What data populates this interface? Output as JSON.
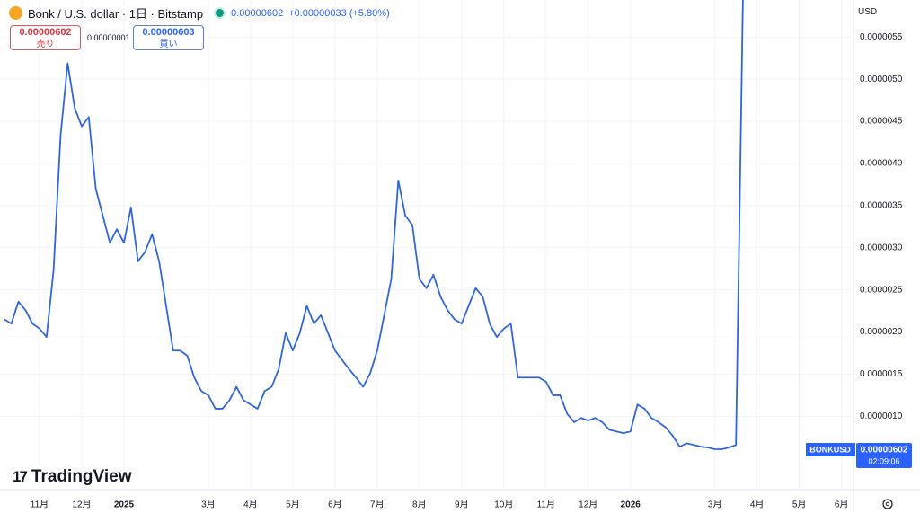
{
  "header": {
    "symbol": "Bonk / U.S. dollar · 1日 · Bitstamp",
    "last_price": "0.00000602",
    "change": "+0.00000033 (+5.80%)"
  },
  "order_panel": {
    "sell_price": "0.00000602",
    "sell_label": "売り",
    "spread": "0.00000001",
    "buy_price": "0.00000603",
    "buy_label": "買い"
  },
  "currency": "USD",
  "price_tag": {
    "symbol": "BONKUSD",
    "price": "0.00000602",
    "countdown": "02:09:06"
  },
  "logo": "TradingView",
  "chart_data": {
    "type": "line",
    "color": "#3166d9",
    "categories": [
      null,
      null,
      null,
      null,
      null,
      "11月",
      null,
      null,
      null,
      null,
      null,
      "12月",
      null,
      null,
      null,
      null,
      null,
      "2025",
      null,
      null,
      null,
      null,
      null,
      null,
      null,
      null,
      null,
      null,
      null,
      "3月",
      null,
      null,
      null,
      null,
      null,
      "4月",
      null,
      null,
      null,
      null,
      null,
      "5月",
      null,
      null,
      null,
      null,
      null,
      "6月",
      null,
      null,
      null,
      null,
      null,
      "7月",
      null,
      null,
      null,
      null,
      null,
      "8月",
      null,
      null,
      null,
      null,
      null,
      "9月",
      null,
      null,
      null,
      null,
      null,
      "10月",
      null,
      null,
      null,
      null,
      null,
      "11月",
      null,
      null,
      null,
      null,
      null,
      "12月",
      null,
      null,
      null,
      null,
      null,
      "2026",
      null,
      null,
      null,
      null,
      null,
      null,
      null,
      null,
      null,
      null,
      null,
      "3月",
      null,
      null,
      null,
      null,
      null,
      "4月",
      null,
      null,
      null,
      null,
      null,
      "5月",
      null,
      null,
      null,
      null,
      null,
      "6月"
    ],
    "values": [
      2.15e-06,
      2.1e-06,
      2.36e-06,
      2.26e-06,
      2.1e-06,
      2.04e-06,
      1.94e-06,
      2.74e-06,
      4.34e-06,
      5.19e-06,
      4.66e-06,
      4.44e-06,
      4.55e-06,
      3.7e-06,
      3.38e-06,
      3.06e-06,
      3.22e-06,
      3.06e-06,
      3.48e-06,
      2.84e-06,
      2.95e-06,
      3.16e-06,
      2.84e-06,
      2.31e-06,
      1.78e-06,
      1.78e-06,
      1.72e-06,
      1.46e-06,
      1.3e-06,
      1.25e-06,
      1.09e-06,
      1.09e-06,
      1.19e-06,
      1.35e-06,
      1.19e-06,
      1.14e-06,
      1.09e-06,
      1.3e-06,
      1.35e-06,
      1.56e-06,
      1.99e-06,
      1.78e-06,
      1.99e-06,
      2.31e-06,
      2.1e-06,
      2.2e-06,
      1.99e-06,
      1.78e-06,
      1.67e-06,
      1.56e-06,
      1.46e-06,
      1.35e-06,
      1.51e-06,
      1.78e-06,
      2.2e-06,
      2.63e-06,
      3.8e-06,
      3.38e-06,
      3.27e-06,
      2.63e-06,
      2.52e-06,
      2.68e-06,
      2.42e-06,
      2.26e-06,
      2.15e-06,
      2.1e-06,
      2.31e-06,
      2.52e-06,
      2.42e-06,
      2.1e-06,
      1.94e-06,
      2.04e-06,
      2.1e-06,
      1.46e-06,
      1.46e-06,
      1.46e-06,
      1.46e-06,
      1.41e-06,
      1.25e-06,
      1.25e-06,
      1.03e-06,
      9.3e-07,
      9.8e-07,
      9.5e-07,
      9.8e-07,
      9.3e-07,
      8.4e-07,
      8.2e-07,
      8e-07,
      8.2e-07,
      1.14e-06,
      1.09e-06,
      9.8e-07,
      9.3e-07,
      8.7e-07,
      7.7e-07,
      6.4e-07,
      6.8e-07,
      6.6e-07,
      6.4e-07,
      6.3e-07,
      6.1e-07,
      6.1e-07,
      6.3e-07,
      6.6e-07,
      6.02e-06,
      null,
      null,
      null,
      null,
      null,
      null,
      null,
      null,
      null,
      null,
      null,
      null,
      null,
      null
    ],
    "ylim": [
      1.3e-07,
      5.94e-06
    ],
    "yticks": [
      {
        "value": 1e-06,
        "label": "0.0000010"
      },
      {
        "value": 1.5e-06,
        "label": "0.0000015"
      },
      {
        "value": 2e-06,
        "label": "0.0000020"
      },
      {
        "value": 2.5e-06,
        "label": "0.0000025"
      },
      {
        "value": 3e-06,
        "label": "0.0000030"
      },
      {
        "value": 3.5e-06,
        "label": "0.0000035"
      },
      {
        "value": 4e-06,
        "label": "0.0000040"
      },
      {
        "value": 4.5e-06,
        "label": "0.0000045"
      },
      {
        "value": 5e-06,
        "label": "0.0000050"
      },
      {
        "value": 5.5e-06,
        "label": "0.0000055"
      }
    ],
    "grid": true
  }
}
